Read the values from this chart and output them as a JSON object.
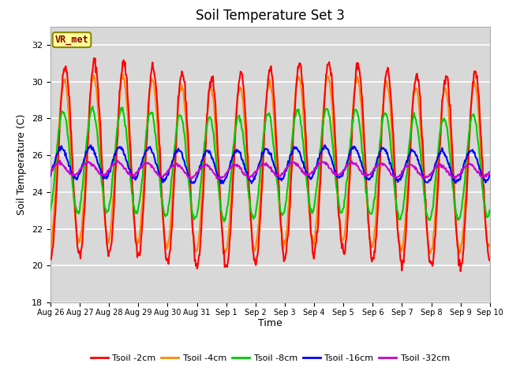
{
  "title": "Soil Temperature Set 3",
  "xlabel": "Time",
  "ylabel": "Soil Temperature (C)",
  "ylim": [
    18,
    33
  ],
  "yticks": [
    18,
    20,
    22,
    24,
    26,
    28,
    30,
    32
  ],
  "date_labels": [
    "Aug 26",
    "Aug 27",
    "Aug 28",
    "Aug 29",
    "Aug 30",
    "Aug 31",
    "Sep 1",
    "Sep 2",
    "Sep 3",
    "Sep 4",
    "Sep 5",
    "Sep 6",
    "Sep 7",
    "Sep 8",
    "Sep 9",
    "Sep 10"
  ],
  "legend_labels": [
    "Tsoil -2cm",
    "Tsoil -4cm",
    "Tsoil -8cm",
    "Tsoil -16cm",
    "Tsoil -32cm"
  ],
  "line_colors": [
    "#ff0000",
    "#ff8800",
    "#00cc00",
    "#0000ff",
    "#cc00cc"
  ],
  "line_widths": [
    1.5,
    1.5,
    1.5,
    1.5,
    1.5
  ],
  "label_box_color": "#ffff99",
  "label_box_edge": "#999900",
  "label_text": "VR_met",
  "background_plot": "#d8d8d8",
  "background_fig": "#ffffff",
  "grid_color": "#ffffff",
  "title_fontsize": 12,
  "axis_fontsize": 9,
  "tick_fontsize": 8,
  "n_points": 720,
  "total_days": 15,
  "amp2": 5.2,
  "mean2": 25.5,
  "amp4": 4.5,
  "mean4": 25.5,
  "amp8": 2.8,
  "mean8": 25.5,
  "amp16": 0.85,
  "mean16": 25.5,
  "amp32": 0.35,
  "mean32": 25.2
}
